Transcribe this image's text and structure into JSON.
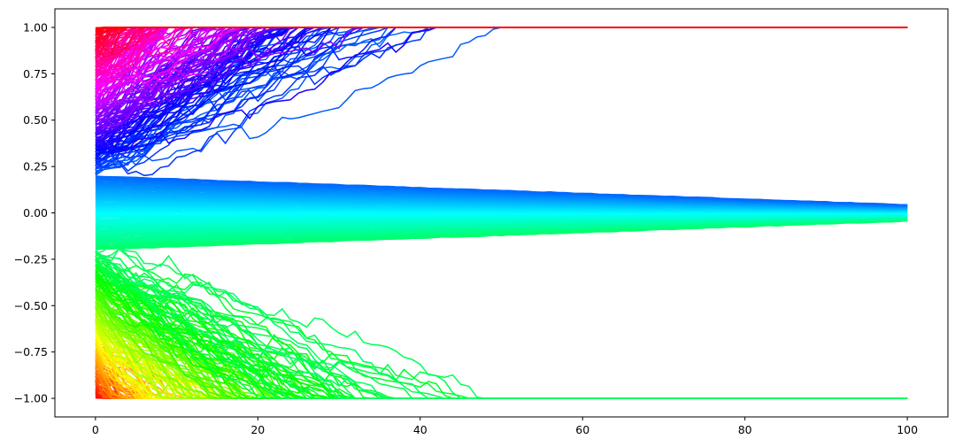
{
  "chart_data": {
    "type": "line",
    "title": "",
    "xlabel": "",
    "ylabel": "",
    "xlim": [
      -5,
      105
    ],
    "ylim": [
      -1.1,
      1.1
    ],
    "grid": false,
    "legend": "none",
    "xticks": [
      0,
      20,
      40,
      60,
      80,
      100
    ],
    "yticks": [
      1.0,
      0.75,
      0.5,
      0.25,
      0.0,
      -0.25,
      -0.5,
      -0.75,
      -1.0
    ],
    "xtick_labels": [
      "0",
      "20",
      "40",
      "60",
      "80",
      "100"
    ],
    "ytick_labels": [
      "1.00",
      "0.75",
      "0.50",
      "0.25",
      "0.00",
      "−0.25",
      "−0.50",
      "−0.75",
      "−1.00"
    ],
    "colormap": "hsv",
    "color_range": {
      "min": "#ff0000",
      "mid": "#00ff66",
      "max": "#ff0026"
    },
    "series_count": 500,
    "series_sample": [
      {
        "x": [
          0,
          8,
          14,
          20,
          26,
          32,
          34,
          36,
          100
        ],
        "y": [
          0.62,
          0.7,
          0.78,
          0.86,
          0.93,
          0.98,
          1.0,
          1.0,
          1.0
        ]
      },
      {
        "x": [
          0,
          10,
          20,
          28,
          32,
          35,
          100
        ],
        "y": [
          0.45,
          0.52,
          0.6,
          0.46,
          0.85,
          1.0,
          1.0
        ]
      },
      {
        "x": [
          0,
          20,
          40,
          60,
          80,
          100
        ],
        "y": [
          0.18,
          0.14,
          0.11,
          0.09,
          0.07,
          0.05
        ]
      },
      {
        "x": [
          0,
          20,
          40,
          60,
          80,
          100
        ],
        "y": [
          0.05,
          0.04,
          0.03,
          0.02,
          0.01,
          0.0
        ]
      },
      {
        "x": [
          0,
          20,
          40,
          60,
          80,
          100
        ],
        "y": [
          -0.18,
          -0.14,
          -0.11,
          -0.08,
          -0.05,
          -0.04
        ]
      },
      {
        "x": [
          0,
          10,
          20,
          25,
          27,
          30,
          33,
          36,
          100
        ],
        "y": [
          -0.35,
          -0.5,
          -0.3,
          -0.22,
          -0.34,
          -0.55,
          -1.0,
          -1.0,
          -1.0
        ]
      },
      {
        "x": [
          0,
          6,
          12,
          18,
          22,
          100
        ],
        "y": [
          -0.78,
          -0.85,
          -0.92,
          -0.98,
          -1.0,
          -1.0
        ]
      }
    ],
    "attractors": [
      1.0,
      0.0,
      -1.0
    ]
  }
}
